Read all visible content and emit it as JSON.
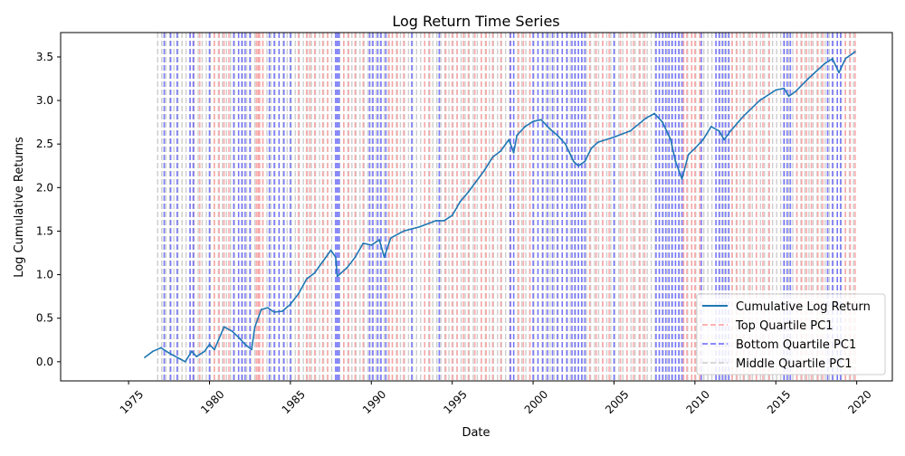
{
  "chart_data": {
    "type": "line",
    "title": "Log Return Time Series",
    "xlabel": "Date",
    "ylabel": "Log Cumulative Returns",
    "xlim": [
      1970.8,
      2022.2
    ],
    "ylim": [
      -0.22,
      3.78
    ],
    "x_ticks": [
      1975,
      1980,
      1985,
      1990,
      1995,
      2000,
      2005,
      2010,
      2015,
      2020
    ],
    "x_tick_labels": [
      "1975",
      "1980",
      "1985",
      "1990",
      "1995",
      "2000",
      "2005",
      "2010",
      "2015",
      "2020"
    ],
    "y_ticks": [
      0.0,
      0.5,
      1.0,
      1.5,
      2.0,
      2.5,
      3.0,
      3.5
    ],
    "y_tick_labels": [
      "0.0",
      "0.5",
      "1.0",
      "1.5",
      "2.0",
      "2.5",
      "3.0",
      "3.5"
    ],
    "grid": false,
    "legend_position": "lower-right",
    "series": [
      {
        "name": "Cumulative Log Return",
        "color": "#1f77b4",
        "style": "solid",
        "x": [
          1976.0,
          1976.5,
          1977.0,
          1977.5,
          1977.8,
          1978.2,
          1978.5,
          1978.9,
          1979.2,
          1979.7,
          1980.0,
          1980.3,
          1980.9,
          1981.4,
          1981.8,
          1982.2,
          1982.6,
          1982.8,
          1983.2,
          1983.6,
          1984.0,
          1984.5,
          1985.0,
          1985.5,
          1986.0,
          1986.5,
          1987.0,
          1987.5,
          1987.8,
          1987.9,
          1988.5,
          1989.0,
          1989.5,
          1990.0,
          1990.5,
          1990.8,
          1991.2,
          1992.0,
          1993.0,
          1994.0,
          1994.5,
          1995.0,
          1995.5,
          1996.0,
          1997.0,
          1997.5,
          1998.0,
          1998.5,
          1998.8,
          1999.0,
          1999.5,
          2000.0,
          2000.5,
          2001.0,
          2001.5,
          2002.0,
          2002.5,
          2002.8,
          2003.2,
          2003.6,
          2004.0,
          2005.0,
          2006.0,
          2007.0,
          2007.5,
          2008.0,
          2008.5,
          2008.8,
          2009.2,
          2009.6,
          2010.0,
          2010.5,
          2011.0,
          2011.5,
          2011.8,
          2012.2,
          2013.0,
          2014.0,
          2015.0,
          2015.5,
          2015.8,
          2016.2,
          2017.0,
          2018.0,
          2018.5,
          2018.9,
          2019.3,
          2019.9
        ],
        "y": [
          0.05,
          0.12,
          0.16,
          0.1,
          0.07,
          0.03,
          0.0,
          0.12,
          0.06,
          0.12,
          0.2,
          0.14,
          0.4,
          0.35,
          0.28,
          0.2,
          0.14,
          0.4,
          0.6,
          0.62,
          0.57,
          0.58,
          0.66,
          0.78,
          0.95,
          1.02,
          1.15,
          1.28,
          1.2,
          0.98,
          1.08,
          1.2,
          1.36,
          1.34,
          1.4,
          1.2,
          1.42,
          1.5,
          1.55,
          1.62,
          1.62,
          1.68,
          1.84,
          1.95,
          2.2,
          2.35,
          2.42,
          2.55,
          2.4,
          2.6,
          2.7,
          2.76,
          2.78,
          2.68,
          2.6,
          2.5,
          2.3,
          2.25,
          2.3,
          2.45,
          2.52,
          2.58,
          2.65,
          2.8,
          2.85,
          2.75,
          2.55,
          2.3,
          2.1,
          2.38,
          2.45,
          2.55,
          2.7,
          2.65,
          2.55,
          2.65,
          2.82,
          3.0,
          3.12,
          3.14,
          3.05,
          3.1,
          3.25,
          3.42,
          3.48,
          3.32,
          3.48,
          3.56
        ]
      },
      {
        "name": "Top Quartile PC1",
        "color": "#ff9999",
        "style": "dashed",
        "x": [
          1979.0,
          1979.4,
          1980.3,
          1980.6,
          1980.9,
          1981.2,
          1982.9,
          1983.0,
          1983.1,
          1983.3,
          1985.5,
          1986.0,
          1986.2,
          1986.5,
          1987.0,
          1987.3,
          1988.3,
          1988.6,
          1989.0,
          1989.5,
          1991.1,
          1991.3,
          1991.6,
          1992.0,
          1993.3,
          1993.6,
          1994.6,
          1995.0,
          1995.3,
          1995.7,
          1996.0,
          1996.4,
          1996.8,
          1997.1,
          1997.5,
          1998.0,
          1998.6,
          1999.1,
          1999.4,
          1999.8,
          2003.5,
          2003.9,
          2004.3,
          2004.7,
          2005.4,
          2005.8,
          2006.2,
          2006.6,
          2006.9,
          2009.3,
          2009.5,
          2009.8,
          2010.0,
          2010.3,
          2012.3,
          2012.6,
          2013.0,
          2013.4,
          2013.8,
          2014.2,
          2014.6,
          2016.3,
          2016.6,
          2016.9,
          2017.2,
          2017.6,
          2017.9,
          2019.3,
          2019.6,
          2019.9
        ]
      },
      {
        "name": "Bottom Quartile PC1",
        "color": "#6666ff",
        "style": "dashed",
        "x": [
          1977.2,
          1977.6,
          1978.0,
          1978.8,
          1979.0,
          1980.0,
          1981.5,
          1981.8,
          1982.0,
          1982.2,
          1982.5,
          1983.7,
          1984.0,
          1984.3,
          1984.6,
          1985.0,
          1987.8,
          1987.9,
          1988.0,
          1989.9,
          1990.1,
          1990.4,
          1990.6,
          1990.9,
          1992.5,
          1994.2,
          1998.6,
          1998.8,
          2000.0,
          2000.3,
          2000.6,
          2000.9,
          2001.2,
          2001.5,
          2001.8,
          2002.1,
          2002.4,
          2002.6,
          2002.8,
          2003.0,
          2003.2,
          2005.0,
          2007.6,
          2007.8,
          2008.0,
          2008.2,
          2008.4,
          2008.6,
          2008.8,
          2009.0,
          2009.2,
          2010.4,
          2011.3,
          2011.5,
          2011.7,
          2011.9,
          2012.1,
          2015.5,
          2015.7,
          2015.9,
          2018.2,
          2018.5,
          2018.8,
          2019.0
        ]
      },
      {
        "name": "Middle Quartile PC1",
        "color": "#cccccc",
        "style": "dashed",
        "x": []
      }
    ],
    "middle_band": [
      1976.8,
      2020.0
    ],
    "middle_step": 0.25
  }
}
